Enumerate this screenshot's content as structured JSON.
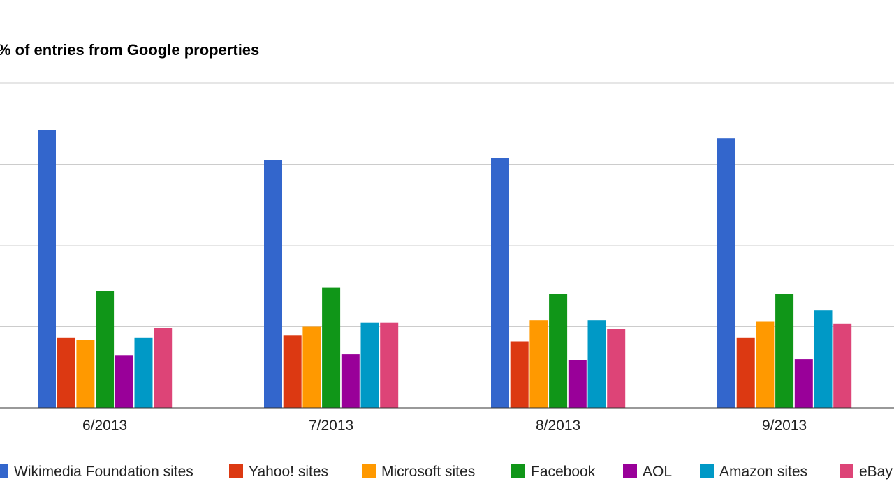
{
  "chart_data": {
    "type": "bar",
    "title": "% of entries from Google properties",
    "xlabel": "",
    "ylabel": "",
    "categories": [
      "6/2013",
      "7/2013",
      "8/2013",
      "9/2013"
    ],
    "ylim": [
      0,
      40
    ],
    "yticks": [
      0,
      10,
      20,
      30,
      40
    ],
    "grid": true,
    "legend": "bottom",
    "series": [
      {
        "name": "Wikimedia Foundation sites",
        "color": "#3366cc",
        "values": [
          34.2,
          30.5,
          30.8,
          33.2
        ]
      },
      {
        "name": "Yahoo! sites",
        "color": "#dc3912",
        "values": [
          8.6,
          8.9,
          8.2,
          8.6
        ]
      },
      {
        "name": "Microsoft sites",
        "color": "#ff9900",
        "values": [
          8.4,
          10.0,
          10.8,
          10.6
        ]
      },
      {
        "name": "Facebook",
        "color": "#109618",
        "values": [
          14.4,
          14.8,
          14.0,
          14.0
        ]
      },
      {
        "name": "AOL",
        "color": "#990099",
        "values": [
          6.5,
          6.6,
          5.9,
          6.0
        ]
      },
      {
        "name": "Amazon sites",
        "color": "#0099c6",
        "values": [
          8.6,
          10.5,
          10.8,
          12.0
        ]
      },
      {
        "name": "eBay",
        "color": "#dd4477",
        "values": [
          9.8,
          10.5,
          9.7,
          10.4
        ]
      }
    ]
  }
}
